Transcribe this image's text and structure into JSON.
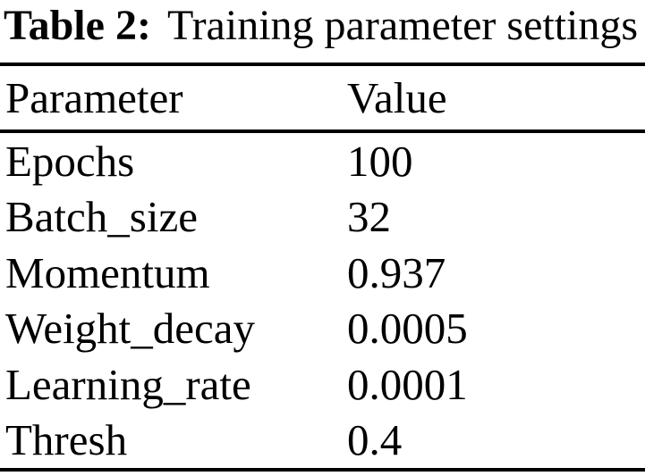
{
  "caption": {
    "label": "Table 2:",
    "text": "Training parameter settings"
  },
  "columns": [
    "Parameter",
    "Value"
  ],
  "rows": [
    {
      "parameter": "Epochs",
      "value": "100"
    },
    {
      "parameter": "Batch_size",
      "value": "32"
    },
    {
      "parameter": "Momentum",
      "value": "0.937"
    },
    {
      "parameter": "Weight_decay",
      "value": "0.0005"
    },
    {
      "parameter": "Learning_rate",
      "value": "0.0001"
    },
    {
      "parameter": "Thresh",
      "value": "0.4"
    }
  ],
  "colors": {
    "text": "#000000",
    "background": "#ffffff",
    "rule": "#000000"
  }
}
